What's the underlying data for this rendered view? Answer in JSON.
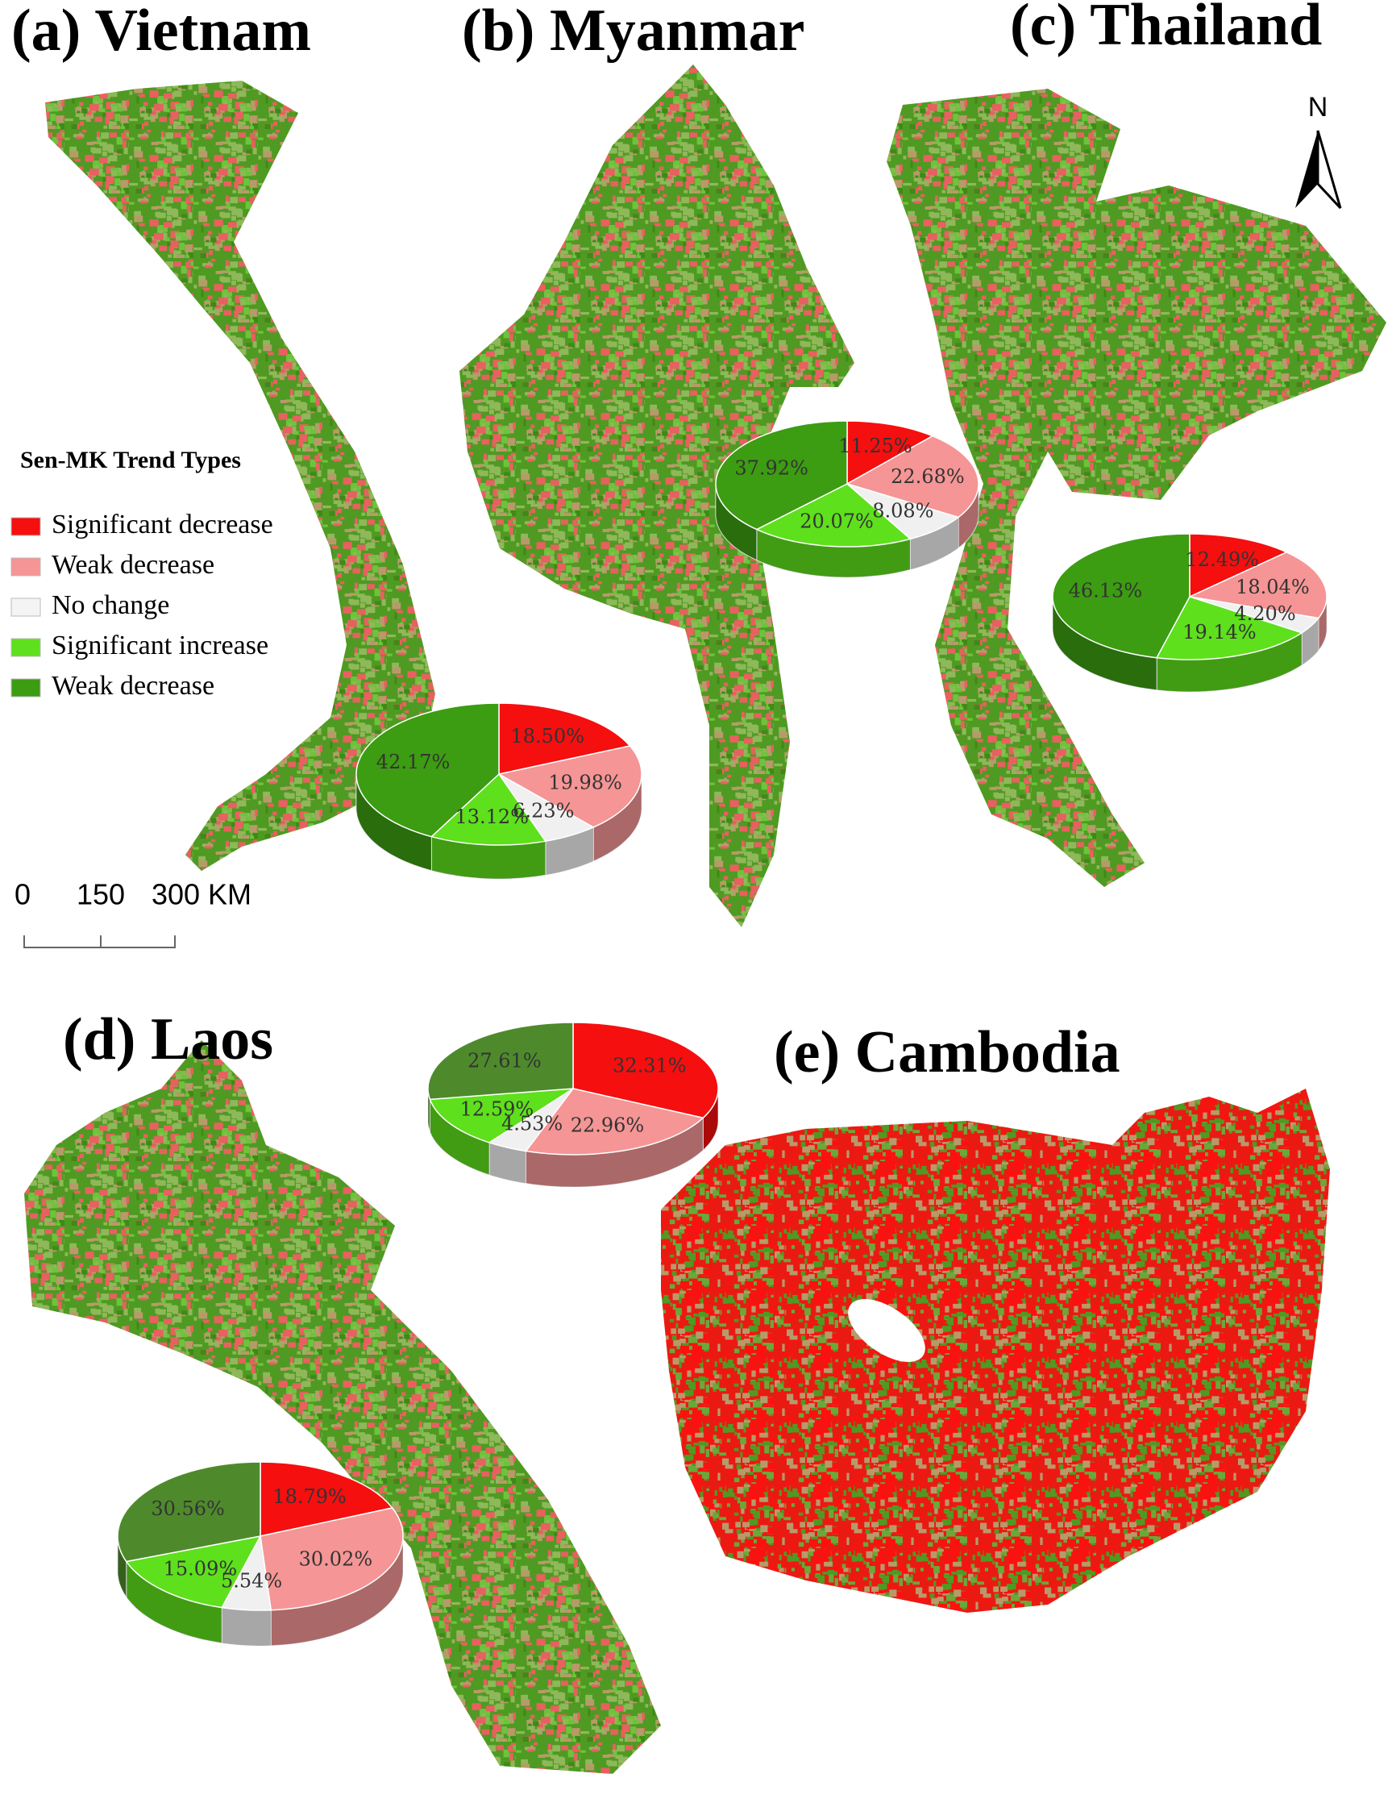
{
  "legend": {
    "title": "Sen-MK Trend Types",
    "entries": [
      {
        "label": "Significant decrease",
        "color": "#f50f0f"
      },
      {
        "label": "Weak decrease",
        "color": "#f59595"
      },
      {
        "label": "No change",
        "color": "#f4f4f4"
      },
      {
        "label": "Significant increase",
        "color": "#5ee01c"
      },
      {
        "label": "Weak decrease",
        "color": "#3c9c12"
      }
    ]
  },
  "scale_bar": {
    "labels": [
      "0",
      "150",
      "300 KM"
    ]
  },
  "north_arrow": "N",
  "chart_data": [
    {
      "type": "pie",
      "title": "(a) Vietnam",
      "values": [
        18.5,
        19.98,
        6.23,
        13.12,
        42.17
      ],
      "value_labels": [
        "18.50%",
        "19.98%",
        "6.23%",
        "13.12%",
        "42.17%"
      ],
      "colors": [
        "#f50f0f",
        "#f59595",
        "#f0f0f0",
        "#5ee01c",
        "#3c9c12"
      ]
    },
    {
      "type": "pie",
      "title": "(b) Myanmar",
      "values": [
        11.25,
        22.68,
        8.08,
        20.07,
        37.92
      ],
      "value_labels": [
        "11.25%",
        "22.68%",
        "8.08%",
        "20.07%",
        "37.92%"
      ],
      "colors": [
        "#f50f0f",
        "#f59595",
        "#f0f0f0",
        "#5ee01c",
        "#3c9c12"
      ]
    },
    {
      "type": "pie",
      "title": "(c) Thailand",
      "values": [
        12.49,
        18.04,
        4.2,
        19.14,
        46.13
      ],
      "value_labels": [
        "12.49%",
        "18.04%",
        "4.20%",
        "19.14%",
        "46.13%"
      ],
      "colors": [
        "#f50f0f",
        "#f59595",
        "#f0f0f0",
        "#5ee01c",
        "#3c9c12"
      ]
    },
    {
      "type": "pie",
      "title": "(d) Laos",
      "values": [
        18.79,
        30.02,
        5.54,
        15.09,
        30.56
      ],
      "value_labels": [
        "18.79%",
        "30.02%",
        "5.54%",
        "15.09%",
        "30.56%"
      ],
      "colors": [
        "#f50f0f",
        "#f59595",
        "#f0f0f0",
        "#5ee01c",
        "#4e8a2c"
      ]
    },
    {
      "type": "pie",
      "title": "(e) Cambodia",
      "values": [
        32.31,
        22.96,
        4.53,
        12.59,
        27.61
      ],
      "value_labels": [
        "32.31%",
        "22.96%",
        "4.53%",
        "12.59%",
        "27.61%"
      ],
      "colors": [
        "#f50f0f",
        "#f59595",
        "#f0f0f0",
        "#5ee01c",
        "#4e8a2c"
      ]
    }
  ]
}
